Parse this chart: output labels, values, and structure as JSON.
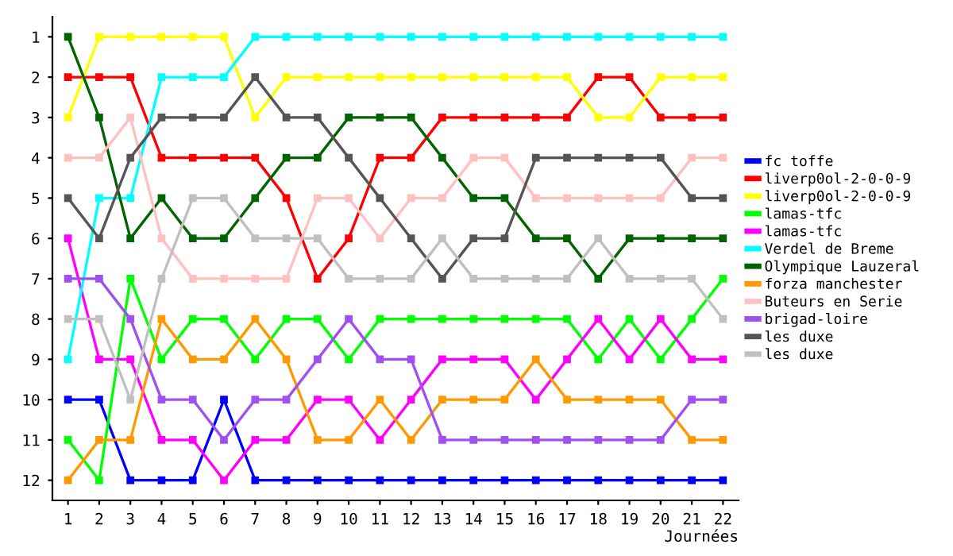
{
  "chart_data": {
    "type": "line",
    "xlabel": "Journées",
    "x": [
      1,
      2,
      3,
      4,
      5,
      6,
      7,
      8,
      9,
      10,
      11,
      12,
      13,
      14,
      15,
      16,
      17,
      18,
      19,
      20,
      21,
      22
    ],
    "xlim": [
      0.5,
      22.5
    ],
    "xticks": [
      1,
      2,
      3,
      4,
      5,
      6,
      7,
      8,
      9,
      10,
      11,
      12,
      13,
      14,
      15,
      16,
      17,
      18,
      19,
      20,
      21,
      22
    ],
    "ylim": [
      12.5,
      0.5
    ],
    "yticks": [
      1,
      2,
      3,
      4,
      5,
      6,
      7,
      8,
      9,
      10,
      11,
      12
    ],
    "marker": "square",
    "line_style": "solid",
    "grid": false,
    "legend": "right",
    "series": [
      {
        "name": "fc toffe",
        "color": "#0000ff",
        "values": [
          10,
          10,
          12,
          12,
          12,
          10,
          12,
          12,
          12,
          12,
          12,
          12,
          12,
          12,
          12,
          12,
          12,
          12,
          12,
          12,
          12,
          12
        ]
      },
      {
        "name": "liverp0ol-2-0-0-9",
        "color": "#ff0000",
        "values": [
          2,
          2,
          2,
          4,
          4,
          4,
          4,
          5,
          7,
          6,
          4,
          4,
          3,
          3,
          3,
          3,
          3,
          2,
          2,
          3,
          3,
          3
        ]
      },
      {
        "name": "liverp0ol-2-0-0-9",
        "color": "#ffff00",
        "values": [
          3,
          1,
          1,
          1,
          1,
          1,
          3,
          2,
          2,
          2,
          2,
          2,
          2,
          2,
          2,
          2,
          2,
          3,
          3,
          2,
          2,
          2
        ]
      },
      {
        "name": "lamas-tfc",
        "color": "#00ff00",
        "values": [
          11,
          12,
          7,
          9,
          8,
          8,
          9,
          8,
          8,
          9,
          8,
          8,
          8,
          8,
          8,
          8,
          8,
          9,
          8,
          9,
          8,
          7
        ]
      },
      {
        "name": "lamas-tfc",
        "color": "#ff00ff",
        "values": [
          6,
          9,
          9,
          11,
          11,
          12,
          11,
          11,
          10,
          10,
          11,
          10,
          9,
          9,
          9,
          10,
          9,
          8,
          9,
          8,
          9,
          9
        ]
      },
      {
        "name": "Verdel de Breme",
        "color": "#00ffff",
        "values": [
          9,
          5,
          5,
          2,
          2,
          2,
          1,
          1,
          1,
          1,
          1,
          1,
          1,
          1,
          1,
          1,
          1,
          1,
          1,
          1,
          1,
          1
        ]
      },
      {
        "name": "Olympique Lauzeral",
        "color": "#006400",
        "values": [
          1,
          3,
          6,
          5,
          6,
          6,
          5,
          4,
          4,
          3,
          3,
          3,
          4,
          5,
          5,
          6,
          6,
          7,
          6,
          6,
          6,
          6
        ]
      },
      {
        "name": "forza manchester",
        "color": "#ff9900",
        "values": [
          12,
          11,
          11,
          8,
          9,
          9,
          8,
          9,
          11,
          11,
          10,
          11,
          10,
          10,
          10,
          9,
          10,
          10,
          10,
          10,
          11,
          11
        ]
      },
      {
        "name": "Buteurs en Serie",
        "color": "#ffc0c0",
        "values": [
          4,
          4,
          3,
          6,
          7,
          7,
          7,
          7,
          5,
          5,
          6,
          5,
          5,
          4,
          4,
          5,
          5,
          5,
          5,
          5,
          4,
          4
        ]
      },
      {
        "name": "brigad-loire",
        "color": "#a050f0",
        "values": [
          7,
          7,
          8,
          10,
          10,
          11,
          10,
          10,
          9,
          8,
          9,
          9,
          11,
          11,
          11,
          11,
          11,
          11,
          11,
          11,
          10,
          10
        ]
      },
      {
        "name": "les duxe",
        "color": "#555555",
        "values": [
          5,
          6,
          4,
          3,
          3,
          3,
          2,
          3,
          3,
          4,
          5,
          6,
          7,
          6,
          6,
          4,
          4,
          4,
          4,
          4,
          5,
          5
        ]
      },
      {
        "name": "les duxe",
        "color": "#c0c0c0",
        "values": [
          8,
          8,
          10,
          7,
          5,
          5,
          6,
          6,
          6,
          7,
          7,
          7,
          6,
          7,
          7,
          7,
          7,
          6,
          7,
          7,
          7,
          8
        ]
      }
    ]
  }
}
